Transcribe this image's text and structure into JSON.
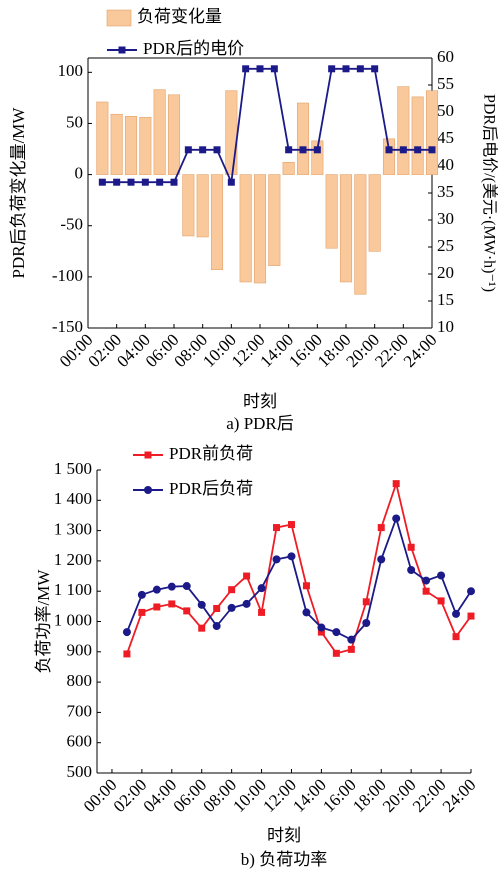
{
  "chart_data": [
    {
      "type": "combo",
      "title": "a) PDR后",
      "xlabel": "时刻",
      "ylabel": "PDR后负荷变化量/MW",
      "y2label": "PDR后电价/(美元·(MW·h)⁻¹)",
      "x": [
        1,
        2,
        3,
        4,
        5,
        6,
        7,
        8,
        9,
        10,
        11,
        12,
        13,
        14,
        15,
        16,
        17,
        18,
        19,
        20,
        21,
        22,
        23,
        24
      ],
      "xlim": [
        0,
        24
      ],
      "xticks": [
        {
          "value": 0,
          "label": "00:00"
        },
        {
          "value": 2,
          "label": "02:00"
        },
        {
          "value": 4,
          "label": "04:00"
        },
        {
          "value": 6,
          "label": "06:00"
        },
        {
          "value": 8,
          "label": "08:00"
        },
        {
          "value": 10,
          "label": "10:00"
        },
        {
          "value": 12,
          "label": "12:00"
        },
        {
          "value": 14,
          "label": "14:00"
        },
        {
          "value": 16,
          "label": "16:00"
        },
        {
          "value": 18,
          "label": "18:00"
        },
        {
          "value": 20,
          "label": "20:00"
        },
        {
          "value": 22,
          "label": "22:00"
        },
        {
          "value": 24,
          "label": "24:00"
        }
      ],
      "ylim": [
        -150,
        114
      ],
      "yticks": [
        -150,
        -100,
        -50,
        0,
        50,
        100
      ],
      "y2lim": [
        10,
        60
      ],
      "y2ticks": [
        10,
        15,
        20,
        25,
        30,
        35,
        40,
        45,
        50,
        55,
        60
      ],
      "series": [
        {
          "name": "负荷变化量",
          "type": "bar",
          "color": "#f9c89b",
          "values": [
            71,
            59,
            57,
            56,
            83,
            78,
            -60,
            -61,
            -93,
            82,
            -105,
            -106,
            -89,
            12,
            70,
            33,
            -72,
            -105,
            -117,
            -75,
            35,
            86,
            76,
            82
          ]
        },
        {
          "name": "PDR后的电价",
          "type": "line",
          "axis": "y2",
          "marker": "square",
          "color": "#1b1a88",
          "values": [
            37,
            37,
            37,
            37,
            37,
            37,
            43,
            43,
            43,
            37,
            58,
            58,
            58,
            43,
            43,
            43,
            58,
            58,
            58,
            58,
            43,
            43,
            43,
            43
          ]
        }
      ]
    },
    {
      "type": "line",
      "title": "b) 负荷功率",
      "xlabel": "时刻",
      "ylabel": "负荷功率/MW",
      "x": [
        1,
        2,
        3,
        4,
        5,
        6,
        7,
        8,
        9,
        10,
        11,
        12,
        13,
        14,
        15,
        16,
        17,
        18,
        19,
        20,
        21,
        22,
        23,
        24
      ],
      "xlim": [
        -1,
        24
      ],
      "xticks": [
        {
          "value": 0,
          "label": "00:00"
        },
        {
          "value": 2,
          "label": "02:00"
        },
        {
          "value": 4,
          "label": "04:00"
        },
        {
          "value": 6,
          "label": "06:00"
        },
        {
          "value": 8,
          "label": "08:00"
        },
        {
          "value": 10,
          "label": "10:00"
        },
        {
          "value": 12,
          "label": "12:00"
        },
        {
          "value": 14,
          "label": "14:00"
        },
        {
          "value": 16,
          "label": "16:00"
        },
        {
          "value": 18,
          "label": "18:00"
        },
        {
          "value": 20,
          "label": "20:00"
        },
        {
          "value": 22,
          "label": "22:00"
        },
        {
          "value": 24,
          "label": "24:00"
        }
      ],
      "ylim": [
        500,
        1500
      ],
      "yticks": [
        500,
        600,
        700,
        800,
        900,
        {
          "value": 1000,
          "label": "1 000"
        },
        {
          "value": 1100,
          "label": "1 100"
        },
        {
          "value": 1200,
          "label": "1 200"
        },
        {
          "value": 1300,
          "label": "1 300"
        },
        {
          "value": 1400,
          "label": "1 400"
        },
        {
          "value": 1500,
          "label": "1 500"
        }
      ],
      "series": [
        {
          "name": "PDR前负荷",
          "marker": "square",
          "color": "#ee1c25",
          "values": [
            893,
            1030,
            1048,
            1058,
            1035,
            978,
            1043,
            1105,
            1150,
            1030,
            1310,
            1320,
            1118,
            965,
            895,
            908,
            1065,
            1310,
            1455,
            1245,
            1100,
            1068,
            950,
            1018
          ]
        },
        {
          "name": "PDR后负荷",
          "marker": "circle",
          "color": "#1b1a88",
          "values": [
            965,
            1088,
            1105,
            1115,
            1117,
            1055,
            985,
            1045,
            1058,
            1110,
            1205,
            1215,
            1030,
            980,
            965,
            940,
            995,
            1205,
            1340,
            1170,
            1135,
            1152,
            1025,
            1100
          ]
        }
      ]
    }
  ]
}
